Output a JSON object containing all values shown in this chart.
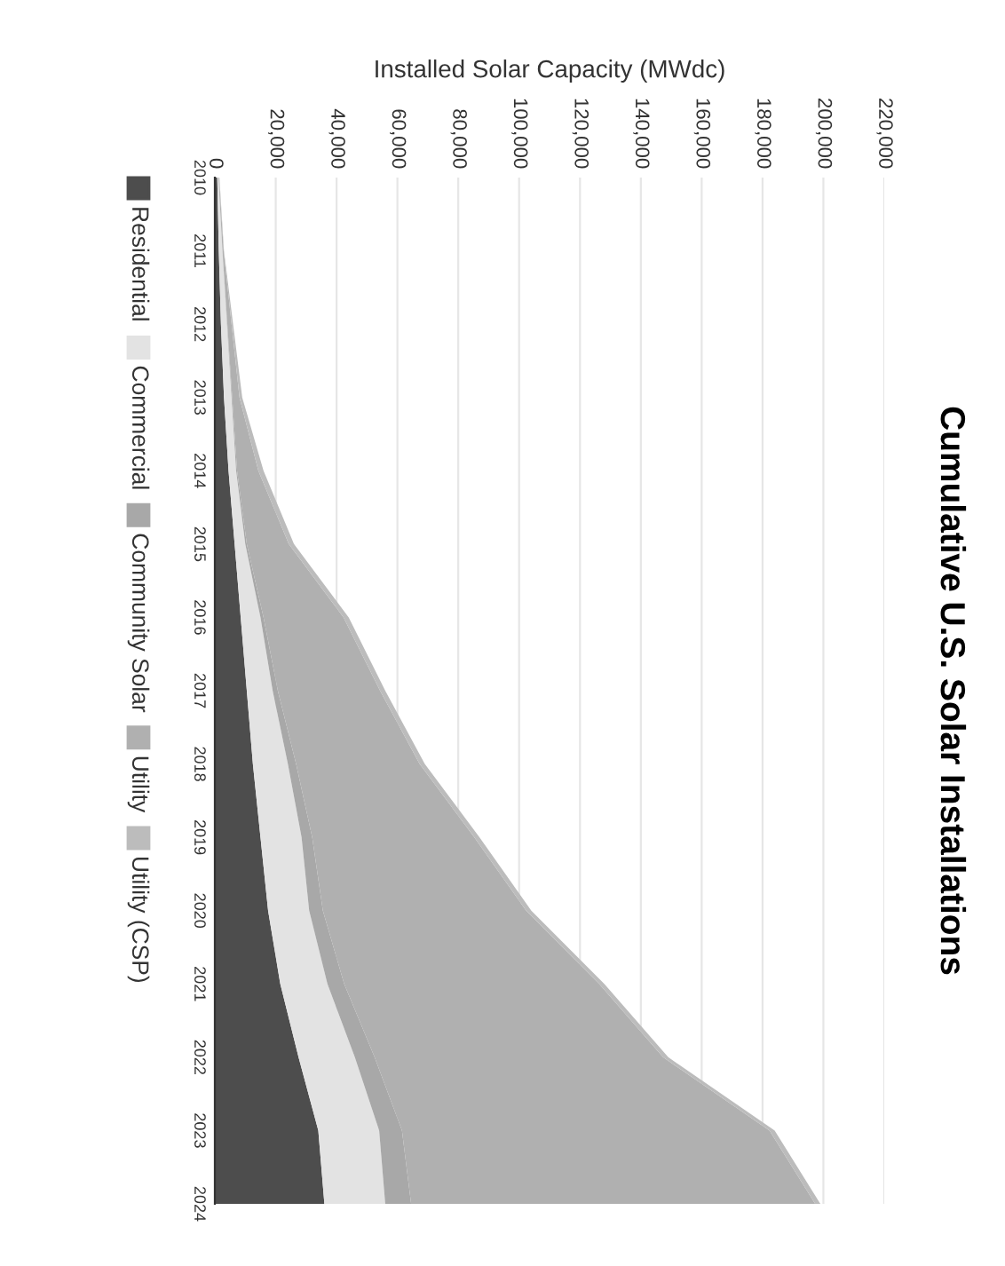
{
  "chart_data": {
    "type": "area",
    "stacked": true,
    "orientation": "horizontal",
    "title": "Cumulative U.S. Solar Installations",
    "xlabel": "Installed Solar Capacity (MWdc)",
    "categories": [
      "2010",
      "2011",
      "2012",
      "2013",
      "2014",
      "2015",
      "2016",
      "2017",
      "2018",
      "2019",
      "2020",
      "2021",
      "2022",
      "2023",
      "2024"
    ],
    "xlim": [
      0,
      220000
    ],
    "xticks": [
      0,
      {
        "value": 20000,
        "label": "20,000"
      },
      {
        "value": 40000,
        "label": "40,000"
      },
      {
        "value": 60000,
        "label": "60,000"
      },
      {
        "value": 80000,
        "label": "80,000"
      },
      {
        "value": 100000,
        "label": "100,000"
      },
      {
        "value": 120000,
        "label": "120,000"
      },
      {
        "value": 140000,
        "label": "140,000"
      },
      {
        "value": 160000,
        "label": "160,000"
      },
      {
        "value": 180000,
        "label": "180,000"
      },
      {
        "value": 200000,
        "label": "200,000"
      },
      {
        "value": 220000,
        "label": "220,000"
      }
    ],
    "grid": "x",
    "legend": "left",
    "series": [
      {
        "name": "Residential",
        "color": "#4d4d4d",
        "values": [
          800,
          1300,
          2000,
          3000,
          4500,
          6500,
          8500,
          10500,
          12500,
          15000,
          17500,
          21500,
          27500,
          34000,
          36000
        ]
      },
      {
        "name": "Commercial",
        "color": "#e3e3e3",
        "values": [
          400,
          1200,
          2000,
          2500,
          2500,
          3500,
          6500,
          8500,
          11500,
          13500,
          13500,
          15500,
          18500,
          20000,
          20000
        ]
      },
      {
        "name": "Community Solar",
        "color": "#a8a8a8",
        "values": [
          0,
          0,
          100,
          200,
          300,
          500,
          1000,
          1700,
          2700,
          3500,
          4500,
          5500,
          6500,
          7500,
          8500
        ]
      },
      {
        "name": "Utility",
        "color": "#b0b0b0",
        "values": [
          200,
          400,
          1400,
          2400,
          7000,
          13800,
          26300,
          33600,
          40600,
          53300,
          66800,
          83800,
          94800,
          120800,
          132800
        ]
      },
      {
        "name": "Utility (CSP)",
        "color": "#bcbcbc",
        "values": [
          100,
          100,
          500,
          900,
          1700,
          1700,
          1700,
          1700,
          1700,
          1700,
          1700,
          1700,
          1700,
          1700,
          1700
        ]
      }
    ]
  }
}
